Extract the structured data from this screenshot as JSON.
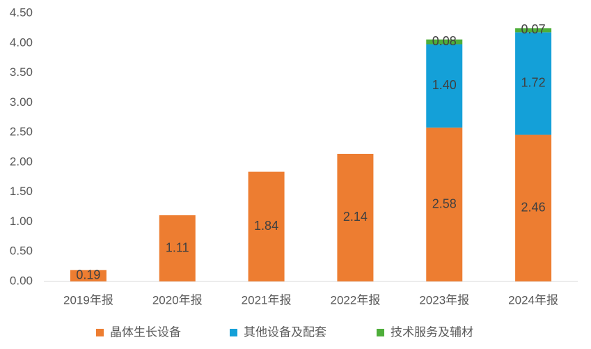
{
  "chart_data": {
    "type": "stacked_bar",
    "categories": [
      "2019年报",
      "2020年报",
      "2021年报",
      "2022年报",
      "2023年报",
      "2024年报"
    ],
    "series": [
      {
        "name": "晶体生长设备",
        "color": "#ED7D31",
        "values": [
          0.19,
          1.11,
          1.84,
          2.14,
          2.58,
          2.46
        ]
      },
      {
        "name": "其他设备及配套",
        "color": "#14A0D8",
        "values": [
          null,
          null,
          null,
          null,
          1.4,
          1.72
        ],
        "value_labels": [
          null,
          null,
          null,
          null,
          "1.40",
          "1.72"
        ]
      },
      {
        "name": "技术服务及辅材",
        "color": "#4EAE3A",
        "values": [
          null,
          null,
          null,
          null,
          0.08,
          0.07
        ]
      }
    ],
    "ylim": [
      0,
      4.5
    ],
    "yticks": [
      {
        "value": 0,
        "label": "0.00"
      },
      {
        "value": 0.5,
        "label": "0.50"
      },
      {
        "value": 1,
        "label": "1.00"
      },
      {
        "value": 1.5,
        "label": "1.50"
      },
      {
        "value": 2,
        "label": "2.00"
      },
      {
        "value": 2.5,
        "label": "2.50"
      },
      {
        "value": 3,
        "label": "3.00"
      },
      {
        "value": 3.5,
        "label": "3.50"
      },
      {
        "value": 4,
        "label": "4.00"
      },
      {
        "value": 4.5,
        "label": "4.50"
      }
    ],
    "grid": false,
    "legend": "bottom"
  }
}
